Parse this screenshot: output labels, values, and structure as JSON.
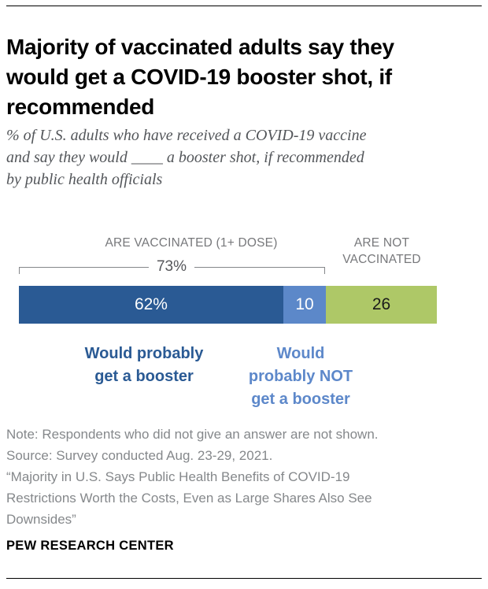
{
  "header": {
    "title_lines": [
      "Majority of vaccinated adults say they",
      "would get a COVID-19 booster shot, if",
      "recommended"
    ],
    "subtitle_lines": [
      "% of U.S. adults who have received a COVID-19 vaccine",
      "and say they would ____ a booster shot, if recommended",
      "by public health officials"
    ]
  },
  "chart_data": {
    "type": "bar",
    "orientation": "horizontal_stacked",
    "title": "Majority of vaccinated adults say they would get a COVID-19 booster shot, if recommended",
    "subtitle": "% of U.S. adults who have received a COVID-19 vaccine and say they would ____ a booster shot, if recommended by public health officials",
    "axis_max": 100,
    "total_shown": 98,
    "segments": [
      {
        "label": "Would probably get a booster",
        "value": 62,
        "display": "62%",
        "color": "#2a5a94",
        "text_color": "#ffffff"
      },
      {
        "label": "Would probably NOT get a booster",
        "value": 10,
        "display": "10",
        "color": "#5c88c9",
        "text_color": "#ffffff"
      },
      {
        "label": "Are not vaccinated",
        "value": 26,
        "display": "26",
        "color": "#aec867",
        "text_color": "#1a1a1a"
      }
    ],
    "group_labels": {
      "vaccinated": "ARE VACCINATED (1+ DOSE)",
      "vaccinated_value": "73%",
      "not_vaccinated_lines": "ARE NOT\nVACCINATED"
    },
    "below_labels": [
      {
        "text_lines": "Would probably\nget a booster",
        "color": "#2a5a94"
      },
      {
        "text_lines": "Would\nprobably NOT\nget a booster",
        "color": "#5d88ca"
      }
    ],
    "legend_position": "below-bar",
    "grid": false
  },
  "notes": {
    "lines": [
      "Note: Respondents who did not give an answer are not shown.",
      "Source: Survey conducted Aug. 23-29, 2021.",
      "“Majority in U.S. Says Public Health Benefits of COVID-19",
      "Restrictions Worth the Costs, Even as Large Shares Also See",
      "Downsides”"
    ]
  },
  "footer": {
    "label": "PEW RESEARCH CENTER"
  }
}
